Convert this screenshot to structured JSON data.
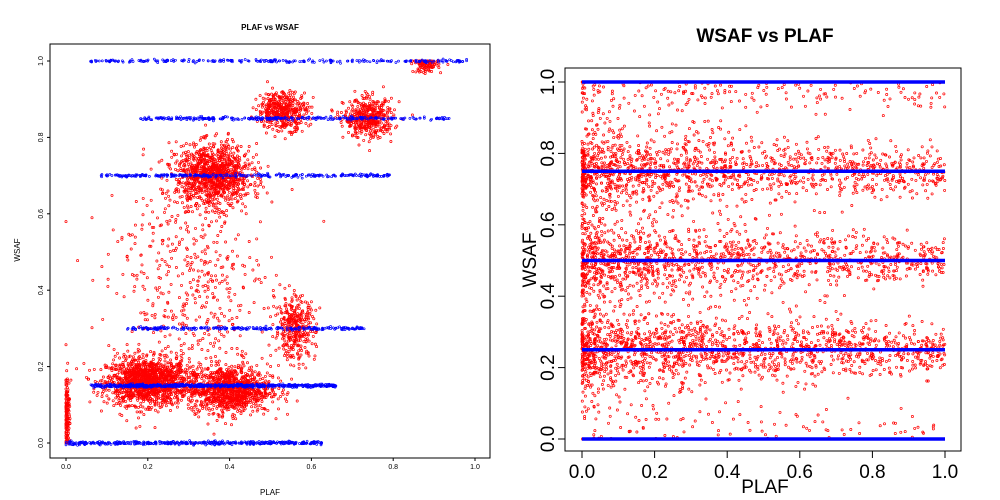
{
  "chart_data": [
    {
      "type": "scatter",
      "title": "PLAF vs WSAF",
      "xlabel": "PLAF",
      "ylabel": "WSAF",
      "xlim": [
        0,
        1
      ],
      "ylim": [
        0,
        1
      ],
      "xticks": [
        "0.0",
        "0.2",
        "0.4",
        "0.6",
        "0.8",
        "1.0"
      ],
      "yticks": [
        "0.0",
        "0.2",
        "0.4",
        "0.6",
        "0.8",
        "1.0"
      ],
      "colors": {
        "observed": "#ff0000",
        "expected": "#0000ff"
      },
      "series": [
        {
          "color": "#ff0000",
          "clusters": [
            {
              "x": 0.2,
              "y": 0.16,
              "sx": 0.05,
              "sy": 0.03,
              "n": 1400
            },
            {
              "x": 0.4,
              "y": 0.14,
              "sx": 0.05,
              "sy": 0.03,
              "n": 1100
            },
            {
              "x": 0.36,
              "y": 0.7,
              "sx": 0.045,
              "sy": 0.04,
              "n": 1100
            },
            {
              "x": 0.53,
              "y": 0.87,
              "sx": 0.03,
              "sy": 0.025,
              "n": 450
            },
            {
              "x": 0.56,
              "y": 0.3,
              "sx": 0.025,
              "sy": 0.04,
              "n": 350
            },
            {
              "x": 0.74,
              "y": 0.85,
              "sx": 0.03,
              "sy": 0.025,
              "n": 450
            },
            {
              "x": 0.88,
              "y": 0.99,
              "sx": 0.015,
              "sy": 0.01,
              "n": 120
            },
            {
              "x": 0.003,
              "y": 0.08,
              "sx": 0.003,
              "sy": 0.05,
              "n": 150
            },
            {
              "x": 0.3,
              "y": 0.4,
              "sx": 0.1,
              "sy": 0.15,
              "n": 500
            }
          ]
        },
        {
          "color": "#0000ff",
          "bands": [
            {
              "y": 0.0,
              "x": [
                0.0,
                0.63
              ],
              "n": 450
            },
            {
              "y": 0.15,
              "x": [
                0.06,
                0.66
              ],
              "n": 700
            },
            {
              "y": 0.3,
              "x": [
                0.15,
                0.73
              ],
              "n": 250
            },
            {
              "y": 0.7,
              "x": [
                0.08,
                0.8
              ],
              "n": 300
            },
            {
              "y": 0.85,
              "x": [
                0.18,
                0.94
              ],
              "n": 300
            },
            {
              "y": 1.0,
              "x": [
                0.06,
                0.98
              ],
              "n": 250
            }
          ]
        }
      ]
    },
    {
      "type": "scatter",
      "title": "WSAF vs PLAF",
      "xlabel": "PLAF",
      "ylabel": "WSAF",
      "xlim": [
        0,
        1
      ],
      "ylim": [
        0,
        1
      ],
      "xticks": [
        "0.0",
        "0.2",
        "0.4",
        "0.6",
        "0.8",
        "1.0"
      ],
      "yticks": [
        "0.0",
        "0.2",
        "0.4",
        "0.6",
        "0.8",
        "1.0"
      ],
      "colors": {
        "observed": "#ff0000",
        "expected": "#0000ff"
      },
      "series": [
        {
          "color": "#ff0000",
          "bands": [
            {
              "y": 0.25,
              "n": 1600
            },
            {
              "y": 0.5,
              "n": 1300
            },
            {
              "y": 0.75,
              "n": 1400
            },
            {
              "y": 0.98,
              "n": 300
            },
            {
              "y": 0.02,
              "n": 150
            }
          ]
        },
        {
          "color": "#0000ff",
          "lines": [
            0.0,
            0.25,
            0.5,
            0.75,
            1.0
          ],
          "x": [
            0.0,
            1.0
          ]
        }
      ]
    }
  ]
}
